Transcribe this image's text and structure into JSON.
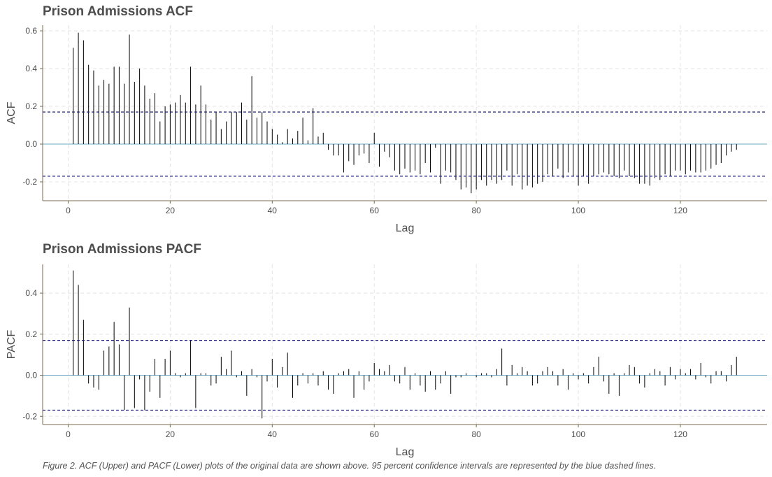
{
  "caption": "Figure 2. ACF (Upper) and PACF (Lower) plots of the original data are shown above. 95 percent confidence intervals are represented by the blue dashed lines.",
  "colors": {
    "zero_line": "#6fa8c4",
    "ci_line": "#1a1a7a",
    "bars": "#000000",
    "axis": "#7a6a4f",
    "grid": "#e4e4e4"
  },
  "chart_data": [
    {
      "type": "bar",
      "title": "Prison Admissions ACF",
      "xlabel": "Lag",
      "ylabel": "ACF",
      "xlim": [
        -5,
        137
      ],
      "ylim": [
        -0.3,
        0.63
      ],
      "x_ticks": [
        0,
        20,
        40,
        60,
        80,
        100,
        120
      ],
      "y_ticks": [
        -0.2,
        0.0,
        0.2,
        0.4,
        0.6
      ],
      "y_tick_labels": [
        "-0.2",
        "0.0",
        "0.2",
        "0.4",
        "0.6"
      ],
      "confidence_interval": [
        -0.17,
        0.17
      ],
      "grid": true,
      "x": [
        1,
        2,
        3,
        4,
        5,
        6,
        7,
        8,
        9,
        10,
        11,
        12,
        13,
        14,
        15,
        16,
        17,
        18,
        19,
        20,
        21,
        22,
        23,
        24,
        25,
        26,
        27,
        28,
        29,
        30,
        31,
        32,
        33,
        34,
        35,
        36,
        37,
        38,
        39,
        40,
        41,
        42,
        43,
        44,
        45,
        46,
        47,
        48,
        49,
        50,
        51,
        52,
        53,
        54,
        55,
        56,
        57,
        58,
        59,
        60,
        61,
        62,
        63,
        64,
        65,
        66,
        67,
        68,
        69,
        70,
        71,
        72,
        73,
        74,
        75,
        76,
        77,
        78,
        79,
        80,
        81,
        82,
        83,
        84,
        85,
        86,
        87,
        88,
        89,
        90,
        91,
        92,
        93,
        94,
        95,
        96,
        97,
        98,
        99,
        100,
        101,
        102,
        103,
        104,
        105,
        106,
        107,
        108,
        109,
        110,
        111,
        112,
        113,
        114,
        115,
        116,
        117,
        118,
        119,
        120,
        121,
        122,
        123,
        124,
        125,
        126,
        127,
        128,
        129,
        130,
        131
      ],
      "values": [
        0.51,
        0.59,
        0.55,
        0.42,
        0.39,
        0.31,
        0.34,
        0.32,
        0.41,
        0.41,
        0.32,
        0.58,
        0.33,
        0.4,
        0.31,
        0.24,
        0.27,
        0.12,
        0.2,
        0.21,
        0.22,
        0.26,
        0.22,
        0.41,
        0.21,
        0.31,
        0.21,
        0.13,
        0.17,
        0.08,
        0.12,
        0.17,
        0.17,
        0.22,
        0.13,
        0.36,
        0.14,
        0.17,
        0.12,
        0.08,
        0.05,
        0.01,
        0.08,
        0.03,
        0.07,
        0.14,
        0.02,
        0.19,
        0.04,
        0.06,
        -0.03,
        -0.06,
        -0.06,
        -0.15,
        -0.09,
        -0.11,
        -0.06,
        -0.05,
        -0.1,
        0.06,
        -0.12,
        -0.04,
        -0.07,
        -0.14,
        -0.16,
        -0.13,
        -0.15,
        -0.14,
        -0.16,
        -0.1,
        -0.15,
        -0.02,
        -0.21,
        -0.14,
        -0.15,
        -0.19,
        -0.24,
        -0.23,
        -0.26,
        -0.24,
        -0.19,
        -0.22,
        -0.19,
        -0.21,
        -0.19,
        -0.14,
        -0.22,
        -0.16,
        -0.24,
        -0.22,
        -0.23,
        -0.21,
        -0.2,
        -0.16,
        -0.17,
        -0.13,
        -0.18,
        -0.15,
        -0.17,
        -0.22,
        -0.17,
        -0.21,
        -0.17,
        -0.16,
        -0.15,
        -0.16,
        -0.17,
        -0.18,
        -0.14,
        -0.17,
        -0.18,
        -0.21,
        -0.21,
        -0.22,
        -0.18,
        -0.19,
        -0.16,
        -0.17,
        -0.14,
        -0.14,
        -0.16,
        -0.14,
        -0.15,
        -0.15,
        -0.14,
        -0.13,
        -0.11,
        -0.1,
        -0.06,
        -0.04,
        -0.03
      ]
    },
    {
      "type": "bar",
      "title": "Prison Admissions PACF",
      "xlabel": "Lag",
      "ylabel": "PACF",
      "xlim": [
        -5,
        137
      ],
      "ylim": [
        -0.24,
        0.54
      ],
      "x_ticks": [
        0,
        20,
        40,
        60,
        80,
        100,
        120
      ],
      "y_ticks": [
        -0.2,
        0.0,
        0.2,
        0.4
      ],
      "y_tick_labels": [
        "-0.2",
        "0.0",
        "0.2",
        "0.4"
      ],
      "confidence_interval": [
        -0.17,
        0.17
      ],
      "grid": true,
      "x": [
        1,
        2,
        3,
        4,
        5,
        6,
        7,
        8,
        9,
        10,
        11,
        12,
        13,
        14,
        15,
        16,
        17,
        18,
        19,
        20,
        21,
        22,
        23,
        24,
        25,
        26,
        27,
        28,
        29,
        30,
        31,
        32,
        33,
        34,
        35,
        36,
        37,
        38,
        39,
        40,
        41,
        42,
        43,
        44,
        45,
        46,
        47,
        48,
        49,
        50,
        51,
        52,
        53,
        54,
        55,
        56,
        57,
        58,
        59,
        60,
        61,
        62,
        63,
        64,
        65,
        66,
        67,
        68,
        69,
        70,
        71,
        72,
        73,
        74,
        75,
        76,
        77,
        78,
        79,
        80,
        81,
        82,
        83,
        84,
        85,
        86,
        87,
        88,
        89,
        90,
        91,
        92,
        93,
        94,
        95,
        96,
        97,
        98,
        99,
        100,
        101,
        102,
        103,
        104,
        105,
        106,
        107,
        108,
        109,
        110,
        111,
        112,
        113,
        114,
        115,
        116,
        117,
        118,
        119,
        120,
        121,
        122,
        123,
        124,
        125,
        126,
        127,
        128,
        129,
        130,
        131
      ],
      "values": [
        0.51,
        0.44,
        0.27,
        -0.04,
        -0.06,
        -0.07,
        0.12,
        0.14,
        0.26,
        0.15,
        -0.17,
        0.33,
        -0.16,
        -0.02,
        -0.17,
        -0.08,
        0.08,
        -0.11,
        0.08,
        0.12,
        0.01,
        -0.01,
        0.01,
        0.17,
        -0.16,
        0.01,
        0.01,
        -0.05,
        -0.04,
        0.09,
        0.03,
        0.12,
        -0.01,
        0.02,
        -0.1,
        0.03,
        -0.01,
        -0.21,
        -0.03,
        0.08,
        -0.06,
        0.04,
        0.11,
        -0.11,
        -0.05,
        0.01,
        -0.04,
        0.01,
        -0.05,
        0.02,
        -0.07,
        -0.09,
        0.01,
        0.02,
        0.03,
        -0.11,
        0.02,
        -0.07,
        -0.03,
        0.06,
        0.03,
        0.02,
        0.05,
        -0.03,
        -0.04,
        0.04,
        -0.07,
        0.01,
        -0.05,
        -0.08,
        0.02,
        -0.07,
        -0.04,
        0.02,
        -0.09,
        -0.01,
        -0.01,
        0.01,
        0.0,
        -0.01,
        0.01,
        0.01,
        -0.01,
        0.03,
        0.13,
        -0.05,
        0.05,
        0.01,
        0.04,
        0.02,
        -0.05,
        -0.04,
        0.02,
        0.04,
        0.02,
        -0.05,
        0.03,
        -0.07,
        0.01,
        -0.02,
        0.01,
        -0.04,
        0.04,
        0.09,
        -0.03,
        -0.09,
        0.01,
        -0.1,
        0.01,
        0.05,
        0.04,
        -0.04,
        -0.06,
        0.01,
        0.03,
        0.02,
        -0.05,
        0.04,
        -0.02,
        0.03,
        0.01,
        0.03,
        -0.02,
        0.06,
        -0.01,
        -0.04,
        0.02,
        0.02,
        -0.03,
        0.05,
        0.09
      ]
    }
  ]
}
